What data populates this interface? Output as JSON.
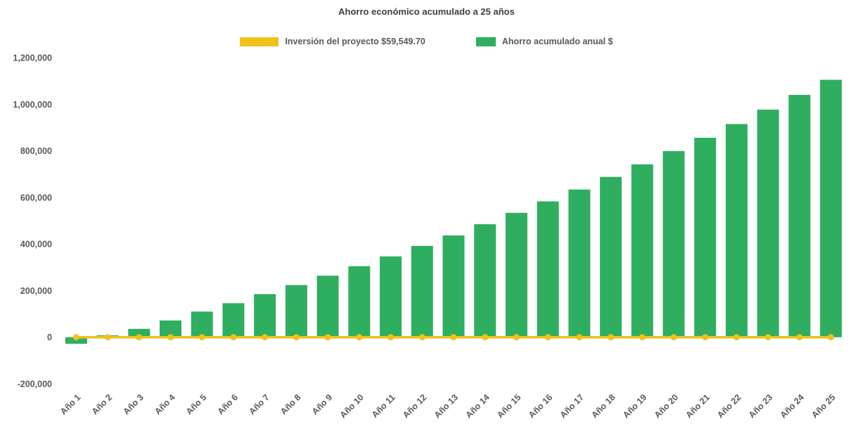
{
  "page": {
    "background": "#ffffff"
  },
  "chart_data": {
    "type": "bar",
    "title": "Ahorro económico acumulado a 25 años",
    "categories": [
      "Año 1",
      "Año 2",
      "Año 3",
      "Año 4",
      "Año 5",
      "Año 6",
      "Año 7",
      "Año 8",
      "Año 9",
      "Año 10",
      "Año 11",
      "Año 12",
      "Año 13",
      "Año 14",
      "Año 15",
      "Año 16",
      "Año 17",
      "Año 18",
      "Año 19",
      "Año 20",
      "Año 21",
      "Año 22",
      "Año 23",
      "Año 24",
      "Año 25"
    ],
    "series": [
      {
        "name": "Inversión del proyecto $59,549.70",
        "type": "line",
        "color": "#eec21d",
        "marker": "circle",
        "constant_value": 0
      },
      {
        "name": "Ahorro acumulado anual $",
        "type": "bar",
        "color": "#2fae5f",
        "values": [
          -28000,
          8000,
          36000,
          72000,
          110000,
          146000,
          185000,
          224000,
          264000,
          305000,
          347000,
          392000,
          437000,
          485000,
          534000,
          583000,
          634000,
          688000,
          742000,
          799000,
          856000,
          915000,
          977000,
          1040000,
          1105000
        ]
      }
    ],
    "ylim": [
      -200000,
      1200000
    ],
    "yticks": [
      {
        "value": 1200000,
        "label": "1,200,000"
      },
      {
        "value": 1000000,
        "label": "1,000,000"
      },
      {
        "value": 800000,
        "label": "800,000"
      },
      {
        "value": 600000,
        "label": "600,000"
      },
      {
        "value": 400000,
        "label": "400,000"
      },
      {
        "value": 200000,
        "label": "200,000"
      },
      {
        "value": 0,
        "label": "0"
      },
      {
        "value": -200000,
        "label": "-200,000"
      }
    ],
    "grid": false,
    "legend_position": "top",
    "axis_text_color": "#595959",
    "title_color": "#404040"
  }
}
